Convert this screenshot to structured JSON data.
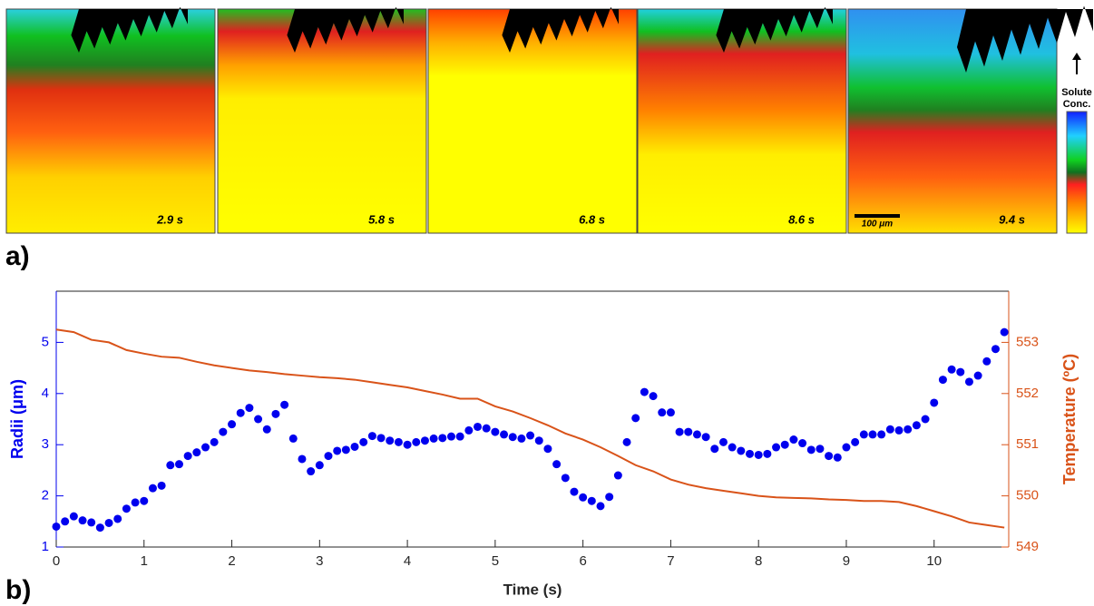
{
  "panel_a": {
    "label": "a)",
    "frames": [
      {
        "time": "2.9 s"
      },
      {
        "time": "5.8 s"
      },
      {
        "time": "6.8 s"
      },
      {
        "time": "8.6 s"
      },
      {
        "time": "9.4 s"
      }
    ],
    "scale_bar": "100 μm",
    "colorbar_label": [
      "Solute",
      "Conc."
    ]
  },
  "chart_data": {
    "type": "scatter",
    "panel_label": "b)",
    "x_label": "Time (s)",
    "y_label": "Radii (μm)",
    "y2_label": "Temperature (ºC)",
    "xlim": [
      0,
      10.85
    ],
    "xticks": [
      0,
      1,
      2,
      3,
      4,
      5,
      6,
      7,
      8,
      9,
      10
    ],
    "ylim": [
      1,
      6
    ],
    "yticks": [
      1,
      2,
      3,
      4,
      5
    ],
    "y2lim": [
      549,
      554
    ],
    "y2ticks": [
      549,
      550,
      551,
      552,
      553
    ],
    "series": [
      {
        "type": "scatter",
        "color": "#0000ee",
        "x": [
          0,
          0.1,
          0.2,
          0.3,
          0.4,
          0.5,
          0.6,
          0.7,
          0.8,
          0.9,
          1,
          1.1,
          1.2,
          1.3,
          1.4,
          1.5,
          1.6,
          1.7,
          1.8,
          1.9,
          2,
          2.1,
          2.2,
          2.3,
          2.4,
          2.5,
          2.6,
          2.7,
          2.8,
          2.9,
          3,
          3.1,
          3.2,
          3.3,
          3.4,
          3.5,
          3.6,
          3.7,
          3.8,
          3.9,
          4,
          4.1,
          4.2,
          4.3,
          4.4,
          4.5,
          4.6,
          4.7,
          4.8,
          4.9,
          5,
          5.1,
          5.2,
          5.3,
          5.4,
          5.5,
          5.6,
          5.7,
          5.8,
          5.9,
          6,
          6.1,
          6.2,
          6.3,
          6.4,
          6.5,
          6.6,
          6.7,
          6.8,
          6.9,
          7,
          7.1,
          7.2,
          7.3,
          7.4,
          7.5,
          7.6,
          7.7,
          7.8,
          7.9,
          8,
          8.1,
          8.2,
          8.3,
          8.4,
          8.5,
          8.6,
          8.7,
          8.8,
          8.9,
          9,
          9.1,
          9.2,
          9.3,
          9.4,
          9.5,
          9.6,
          9.7,
          9.8,
          9.9,
          10,
          10.1,
          10.2,
          10.3,
          10.4,
          10.5,
          10.6,
          10.7,
          10.8
        ],
        "values": [
          1.4,
          1.5,
          1.6,
          1.52,
          1.48,
          1.38,
          1.47,
          1.55,
          1.75,
          1.87,
          1.9,
          2.15,
          2.2,
          2.6,
          2.62,
          2.78,
          2.85,
          2.95,
          3.05,
          3.25,
          3.4,
          3.62,
          3.72,
          3.5,
          3.3,
          3.6,
          3.78,
          3.12,
          2.72,
          2.48,
          2.6,
          2.78,
          2.88,
          2.9,
          2.96,
          3.05,
          3.17,
          3.13,
          3.08,
          3.05,
          3.0,
          3.05,
          3.08,
          3.12,
          3.13,
          3.16,
          3.16,
          3.28,
          3.35,
          3.32,
          3.25,
          3.2,
          3.15,
          3.12,
          3.18,
          3.08,
          2.92,
          2.62,
          2.35,
          2.08,
          1.97,
          1.9,
          1.8,
          1.98,
          2.4,
          3.05,
          3.52,
          4.03,
          3.95,
          3.63,
          3.63,
          3.25,
          3.25,
          3.2,
          3.15,
          2.92,
          3.05,
          2.95,
          2.88,
          2.82,
          2.8,
          2.82,
          2.95,
          3.0,
          3.1,
          3.03,
          2.9,
          2.92,
          2.78,
          2.75,
          2.95,
          3.05,
          3.2,
          3.2,
          3.2,
          3.3,
          3.28,
          3.3,
          3.38,
          3.5,
          3.82,
          4.27,
          4.47,
          4.42,
          4.23,
          4.35,
          4.63,
          4.87,
          5.2
        ]
      },
      {
        "type": "line",
        "axis": "y2",
        "color": "#d95319",
        "x": [
          0,
          0.2,
          0.4,
          0.6,
          0.8,
          1,
          1.2,
          1.4,
          1.6,
          1.8,
          2,
          2.2,
          2.4,
          2.6,
          2.8,
          3,
          3.2,
          3.4,
          3.6,
          3.8,
          4,
          4.2,
          4.4,
          4.6,
          4.8,
          5,
          5.2,
          5.4,
          5.6,
          5.8,
          6,
          6.2,
          6.4,
          6.6,
          6.8,
          7,
          7.2,
          7.4,
          7.6,
          7.8,
          8,
          8.2,
          8.4,
          8.6,
          8.8,
          9,
          9.2,
          9.4,
          9.6,
          9.8,
          10,
          10.2,
          10.4,
          10.6,
          10.8
        ],
        "values": [
          553.25,
          553.2,
          553.05,
          553.0,
          552.85,
          552.78,
          552.72,
          552.7,
          552.62,
          552.55,
          552.5,
          552.45,
          552.42,
          552.38,
          552.35,
          552.32,
          552.3,
          552.27,
          552.22,
          552.17,
          552.12,
          552.05,
          551.98,
          551.9,
          551.9,
          551.75,
          551.65,
          551.52,
          551.38,
          551.22,
          551.1,
          550.95,
          550.78,
          550.6,
          550.48,
          550.32,
          550.22,
          550.15,
          550.1,
          550.05,
          550.0,
          549.97,
          549.96,
          549.95,
          549.93,
          549.92,
          549.9,
          549.9,
          549.88,
          549.8,
          549.7,
          549.6,
          549.48,
          549.43,
          549.38
        ]
      }
    ]
  }
}
